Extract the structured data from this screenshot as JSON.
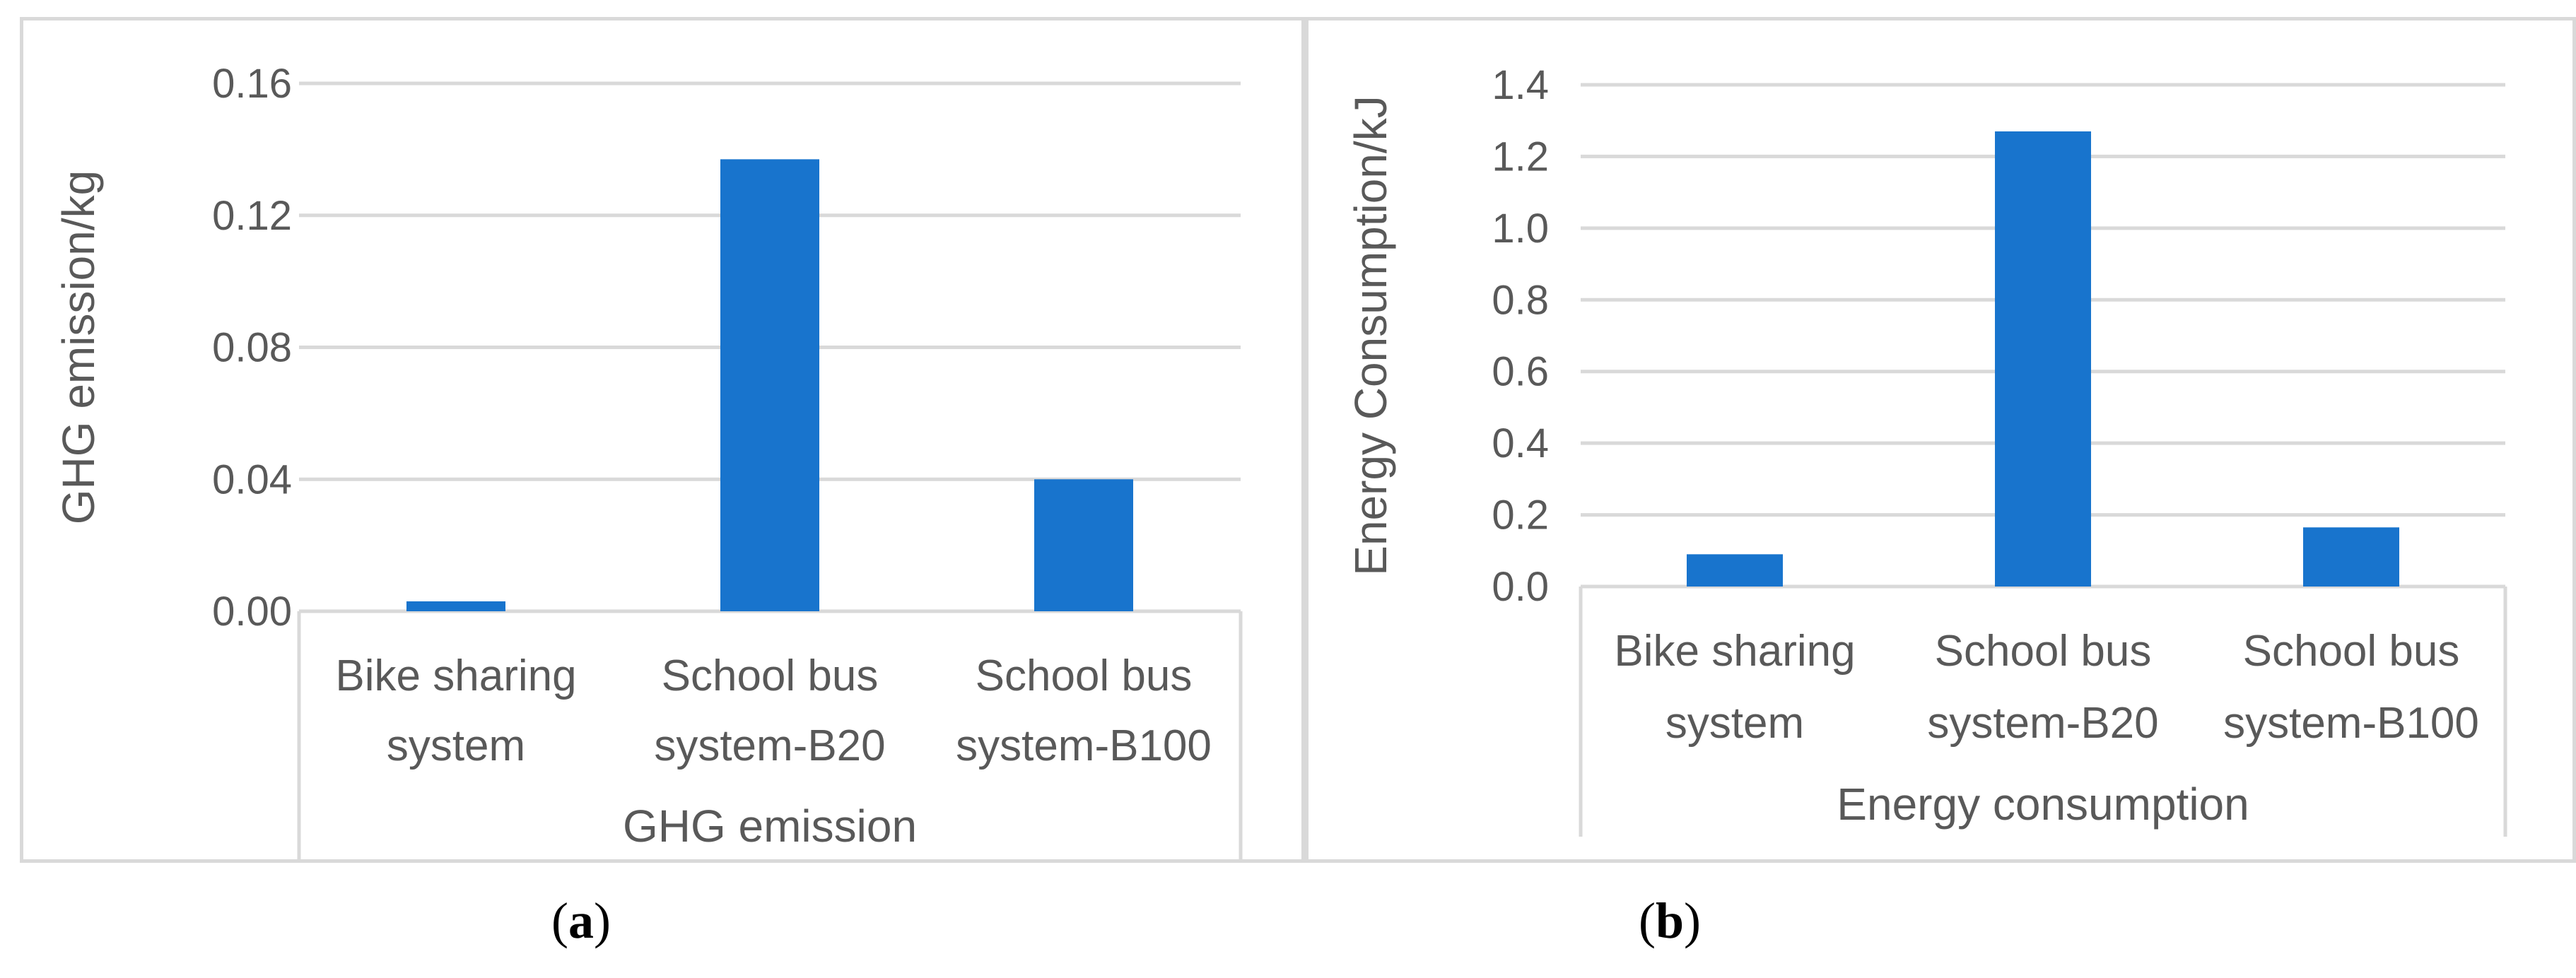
{
  "chart_data": [
    {
      "type": "bar",
      "panel_caption": "(a)",
      "caption_letter": "a",
      "title": "",
      "xlabel": "GHG emission",
      "ylabel": "GHG emission/kg",
      "ylim": [
        0,
        0.16
      ],
      "yticks": [
        0,
        0.04,
        0.08,
        0.12,
        0.16
      ],
      "ytick_labels": [
        "0.00",
        "0.04",
        "0.08",
        "0.12",
        "0.16"
      ],
      "categories": [
        [
          "Bike sharing",
          "system"
        ],
        [
          "School bus",
          "system-B20"
        ],
        [
          "School bus",
          "system-B100"
        ]
      ],
      "values": [
        0.003,
        0.137,
        0.04
      ],
      "color": "#1874cd",
      "grid": true
    },
    {
      "type": "bar",
      "panel_caption": "(b)",
      "caption_letter": "b",
      "title": "",
      "xlabel": "Energy consumption",
      "ylabel": "Energy Consumption/kJ",
      "ylim": [
        0,
        1.4
      ],
      "yticks": [
        0,
        0.2,
        0.4,
        0.6,
        0.8,
        1.0,
        1.2,
        1.4
      ],
      "ytick_labels": [
        "0.0",
        "0.2",
        "0.4",
        "0.6",
        "0.8",
        "1.0",
        "1.2",
        "1.4"
      ],
      "categories": [
        [
          "Bike sharing",
          "system"
        ],
        [
          "School bus",
          "system-B20"
        ],
        [
          "School bus",
          "system-B100"
        ]
      ],
      "values": [
        0.09,
        1.27,
        0.165
      ],
      "color": "#1874cd",
      "grid": true
    }
  ]
}
